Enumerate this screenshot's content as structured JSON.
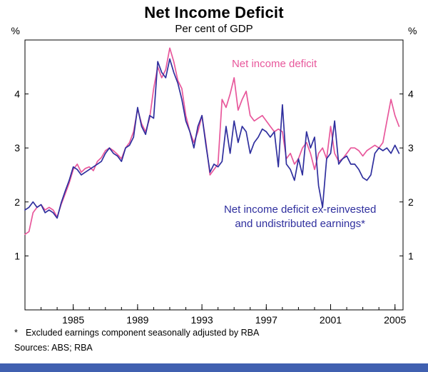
{
  "title": "Net Income Deficit",
  "subtitle": "Per cent of GDP",
  "footnote_marker": "*",
  "footnote_text": "Excluded earnings component seasonally adjusted by RBA",
  "sources": "Sources: ABS; RBA",
  "colors": {
    "accent_pink": "#e8579b",
    "accent_blue": "#2f2f9e",
    "axis": "#000000",
    "bottom_bar": "#4060b0"
  },
  "chart_data": {
    "type": "line",
    "title": "Net Income Deficit",
    "subtitle": "Per cent of GDP",
    "unit": "%",
    "x_start": 1982.0,
    "x_step": 0.25,
    "xlim": [
      1982,
      2005.5
    ],
    "ylim": [
      0,
      5
    ],
    "yticks": [
      1,
      2,
      3,
      4
    ],
    "xtick_labels": [
      1985,
      1989,
      1993,
      1997,
      2001,
      2005
    ],
    "grid": false,
    "legend_position": "inline-annotations",
    "series": [
      {
        "name": "Net income deficit",
        "color": "#e8579b",
        "values": [
          1.4,
          1.45,
          1.8,
          1.9,
          1.95,
          1.85,
          1.9,
          1.85,
          1.72,
          1.95,
          2.15,
          2.35,
          2.6,
          2.7,
          2.55,
          2.62,
          2.65,
          2.58,
          2.75,
          2.82,
          2.95,
          3.0,
          2.95,
          2.88,
          2.8,
          3.0,
          3.1,
          3.3,
          3.72,
          3.45,
          3.3,
          3.55,
          4.1,
          4.5,
          4.3,
          4.45,
          4.85,
          4.6,
          4.25,
          4.1,
          3.6,
          3.3,
          3.1,
          3.3,
          3.6,
          3.1,
          2.5,
          2.6,
          2.7,
          3.9,
          3.75,
          4.0,
          4.3,
          3.7,
          3.9,
          4.05,
          3.6,
          3.5,
          3.55,
          3.6,
          3.5,
          3.4,
          3.3,
          3.35,
          3.3,
          2.8,
          2.9,
          2.7,
          2.8,
          3.0,
          3.1,
          2.9,
          2.6,
          2.9,
          3.0,
          2.8,
          3.4,
          2.9,
          2.75,
          2.8,
          2.9,
          3.0,
          3.0,
          2.95,
          2.85,
          2.95,
          3.0,
          3.05,
          3.0,
          3.1,
          3.5,
          3.9,
          3.6,
          3.4
        ]
      },
      {
        "name": "Net income deficit ex-reinvested and undistributed earnings",
        "color": "#2f2f9e",
        "values": [
          1.85,
          1.9,
          2.0,
          1.9,
          1.95,
          1.8,
          1.85,
          1.8,
          1.7,
          1.98,
          2.2,
          2.4,
          2.65,
          2.6,
          2.5,
          2.55,
          2.6,
          2.65,
          2.7,
          2.75,
          2.9,
          3.0,
          2.9,
          2.85,
          2.75,
          3.0,
          3.05,
          3.2,
          3.75,
          3.4,
          3.25,
          3.6,
          3.55,
          4.6,
          4.4,
          4.3,
          4.65,
          4.4,
          4.2,
          3.9,
          3.5,
          3.3,
          3.0,
          3.4,
          3.6,
          3.05,
          2.55,
          2.7,
          2.65,
          2.75,
          3.4,
          2.9,
          3.5,
          3.1,
          3.4,
          3.3,
          2.9,
          3.1,
          3.2,
          3.35,
          3.3,
          3.2,
          3.3,
          2.65,
          3.8,
          2.7,
          2.6,
          2.4,
          2.8,
          2.5,
          3.3,
          3.0,
          3.2,
          2.3,
          1.9,
          2.8,
          2.9,
          3.5,
          2.7,
          2.8,
          2.85,
          2.7,
          2.7,
          2.6,
          2.45,
          2.4,
          2.5,
          2.9,
          3.0,
          2.95,
          3.0,
          2.9,
          3.05,
          2.9
        ]
      }
    ],
    "annotations": [
      {
        "lines": [
          "Net income deficit"
        ],
        "x": 1997.5,
        "y": 4.5,
        "color": "#e8579b",
        "anchor": "middle"
      },
      {
        "lines": [
          "Net income deficit ex-reinvested",
          "and undistributed earnings*"
        ],
        "x": 1999.1,
        "y": 1.8,
        "color": "#2f2f9e",
        "anchor": "middle"
      }
    ]
  }
}
